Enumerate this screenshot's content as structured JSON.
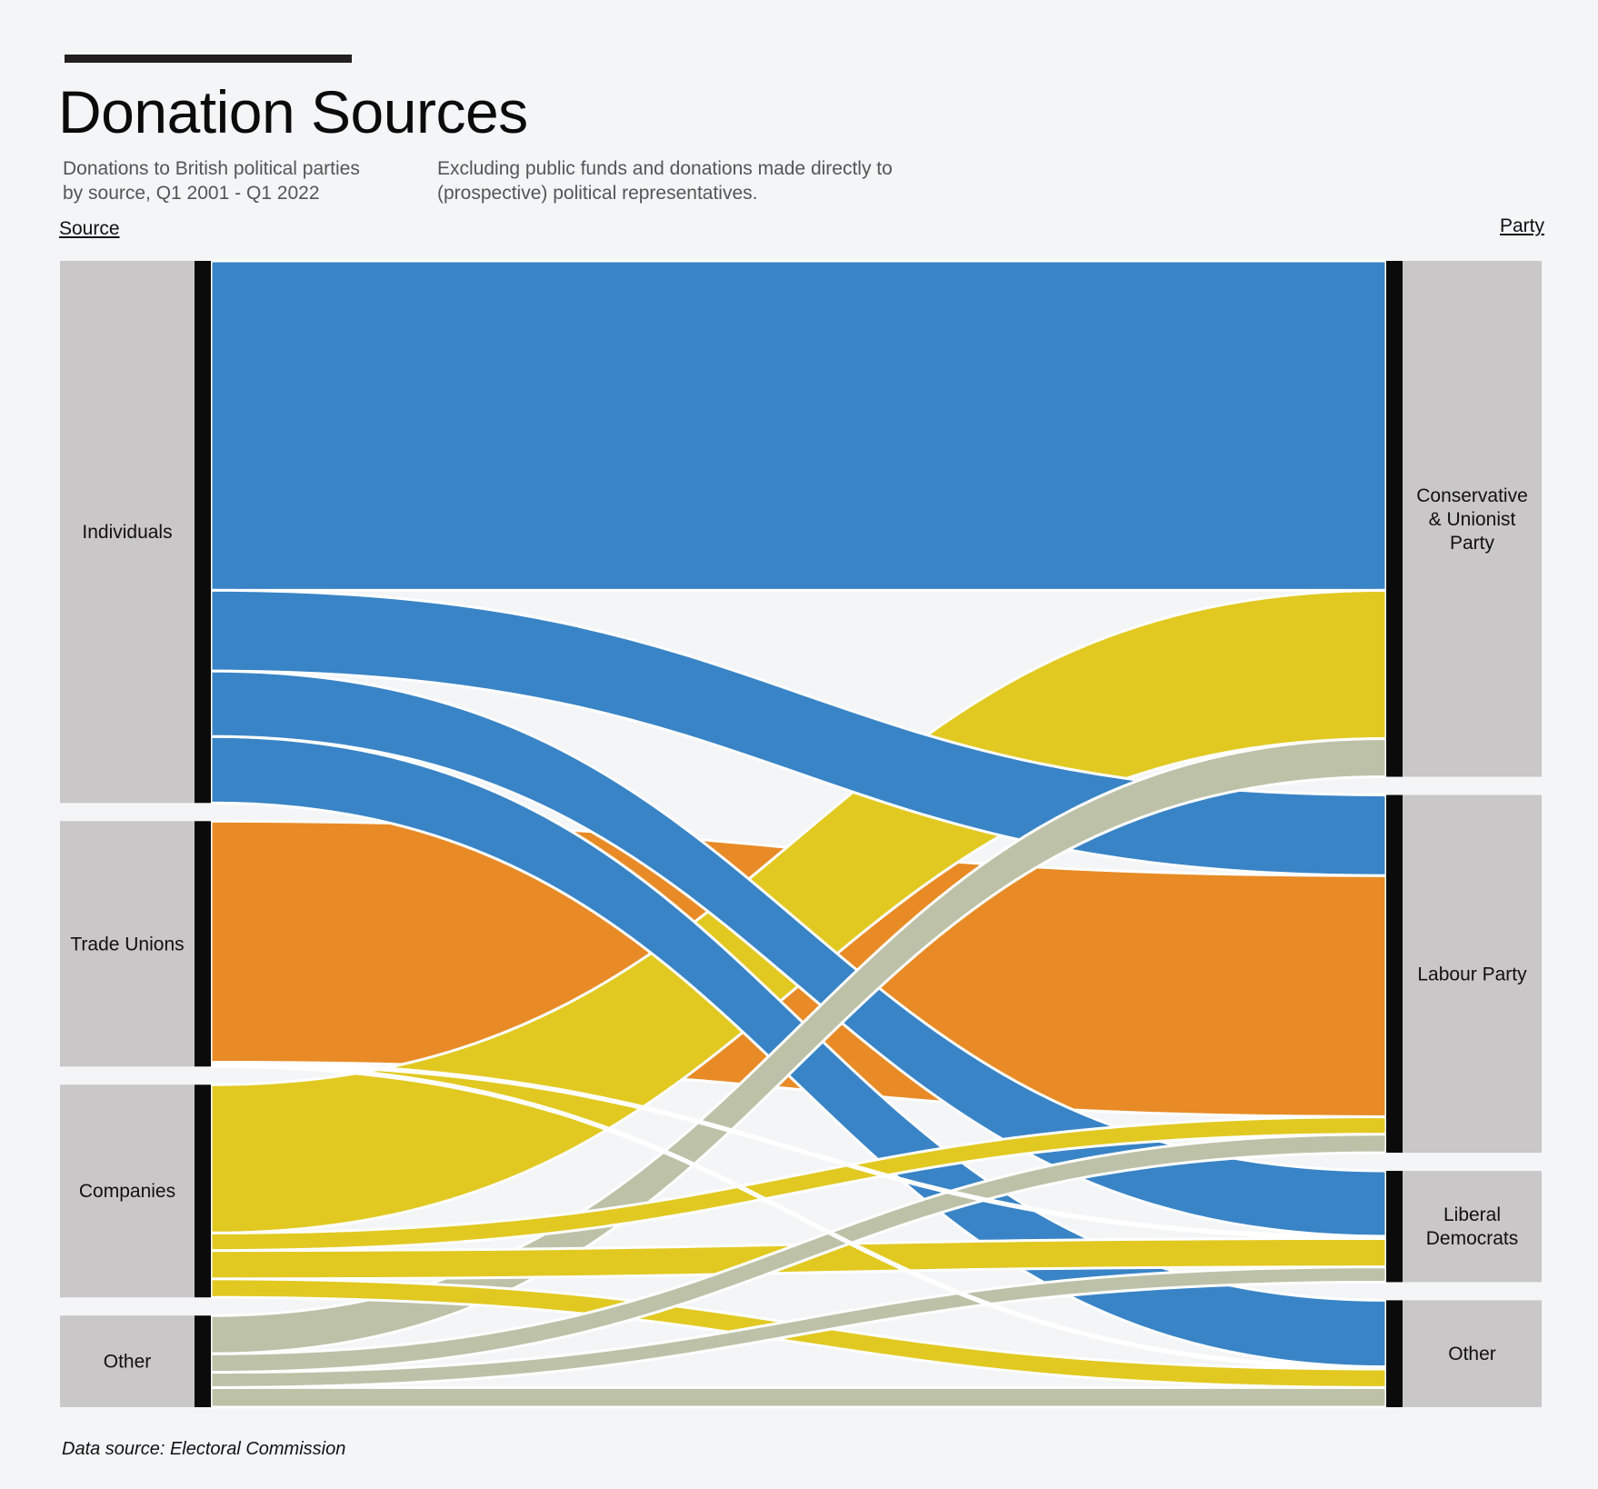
{
  "title": "Donation Sources",
  "subtitle_left": [
    "Donations to British political parties",
    "by source,  Q1 2001 - Q1 2022"
  ],
  "subtitle_right": [
    "Excluding public funds and donations made directly to",
    "(prospective) political representatives."
  ],
  "left_axis_label": "Source",
  "right_axis_label": "Party",
  "footer": "Data source: Electoral Commission",
  "colors": {
    "Individuals": "#3984c6",
    "Trade Unions": "#e88b26",
    "Companies": "#e1c921",
    "Other": "#bdc1a8",
    "node_fill": "#c9c7c8",
    "node_bar": "#0b0b0b",
    "background": "#f4f5f6"
  },
  "chart_data": {
    "type": "sankey",
    "units": "share of total donations (%)",
    "sources": [
      {
        "name": "Individuals",
        "label_lines": [
          "Individuals"
        ]
      },
      {
        "name": "Trade Unions",
        "label_lines": [
          "Trade Unions"
        ]
      },
      {
        "name": "Companies",
        "label_lines": [
          "Companies"
        ]
      },
      {
        "name": "Other",
        "label_lines": [
          "Other"
        ]
      }
    ],
    "targets": [
      {
        "name": "Conservative & Unionist Party",
        "label_lines": [
          "Conservative",
          "& Unionist",
          "Party"
        ]
      },
      {
        "name": "Labour Party",
        "label_lines": [
          "Labour Party"
        ]
      },
      {
        "name": "Liberal Democrats",
        "label_lines": [
          "Liberal",
          "Democrats"
        ]
      },
      {
        "name": "Other",
        "label_lines": [
          "Other"
        ]
      }
    ],
    "links": [
      {
        "source": "Individuals",
        "target": "Conservative & Unionist Party",
        "value": 30.2
      },
      {
        "source": "Individuals",
        "target": "Labour Party",
        "value": 7.4
      },
      {
        "source": "Individuals",
        "target": "Liberal Democrats",
        "value": 6.0
      },
      {
        "source": "Individuals",
        "target": "Other",
        "value": 6.1
      },
      {
        "source": "Trade Unions",
        "target": "Labour Party",
        "value": 22.1
      },
      {
        "source": "Trade Unions",
        "target": "Liberal Democrats",
        "value": 0.2
      },
      {
        "source": "Trade Unions",
        "target": "Other",
        "value": 0.2
      },
      {
        "source": "Companies",
        "target": "Conservative & Unionist Party",
        "value": 13.6
      },
      {
        "source": "Companies",
        "target": "Labour Party",
        "value": 1.6
      },
      {
        "source": "Companies",
        "target": "Liberal Democrats",
        "value": 2.6
      },
      {
        "source": "Companies",
        "target": "Other",
        "value": 1.7
      },
      {
        "source": "Other",
        "target": "Conservative & Unionist Party",
        "value": 3.5
      },
      {
        "source": "Other",
        "target": "Labour Party",
        "value": 1.7
      },
      {
        "source": "Other",
        "target": "Liberal Democrats",
        "value": 1.4
      },
      {
        "source": "Other",
        "target": "Other",
        "value": 1.8
      }
    ]
  }
}
